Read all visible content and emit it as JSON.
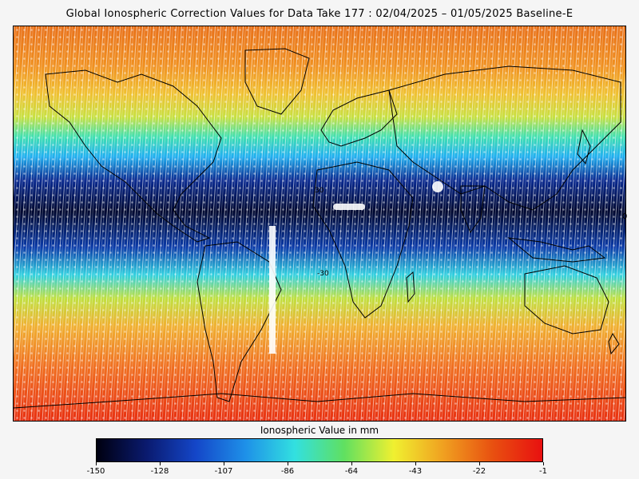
{
  "title": "Global Ionospheric Correction Values for Data Take 177 : 02/04/2025 – 01/05/2025 Baseline-E",
  "colorbar": {
    "label": "Ionospheric Value in mm",
    "min": -150,
    "max": -1,
    "ticks": [
      "-150",
      "-128",
      "-107",
      "-86",
      "-64",
      "-43",
      "-22",
      "-1"
    ],
    "colors": [
      "#000010",
      "#0a1a6e",
      "#1446c8",
      "#1e90e8",
      "#32e0e0",
      "#60e060",
      "#f0f030",
      "#f0a020",
      "#e85010",
      "#e81010"
    ]
  },
  "map": {
    "type": "heatmap",
    "lat_range": [
      -75,
      82
    ],
    "lon_range": [
      -180,
      180
    ],
    "label_right": "0",
    "labels": [
      "30",
      "-30"
    ]
  }
}
